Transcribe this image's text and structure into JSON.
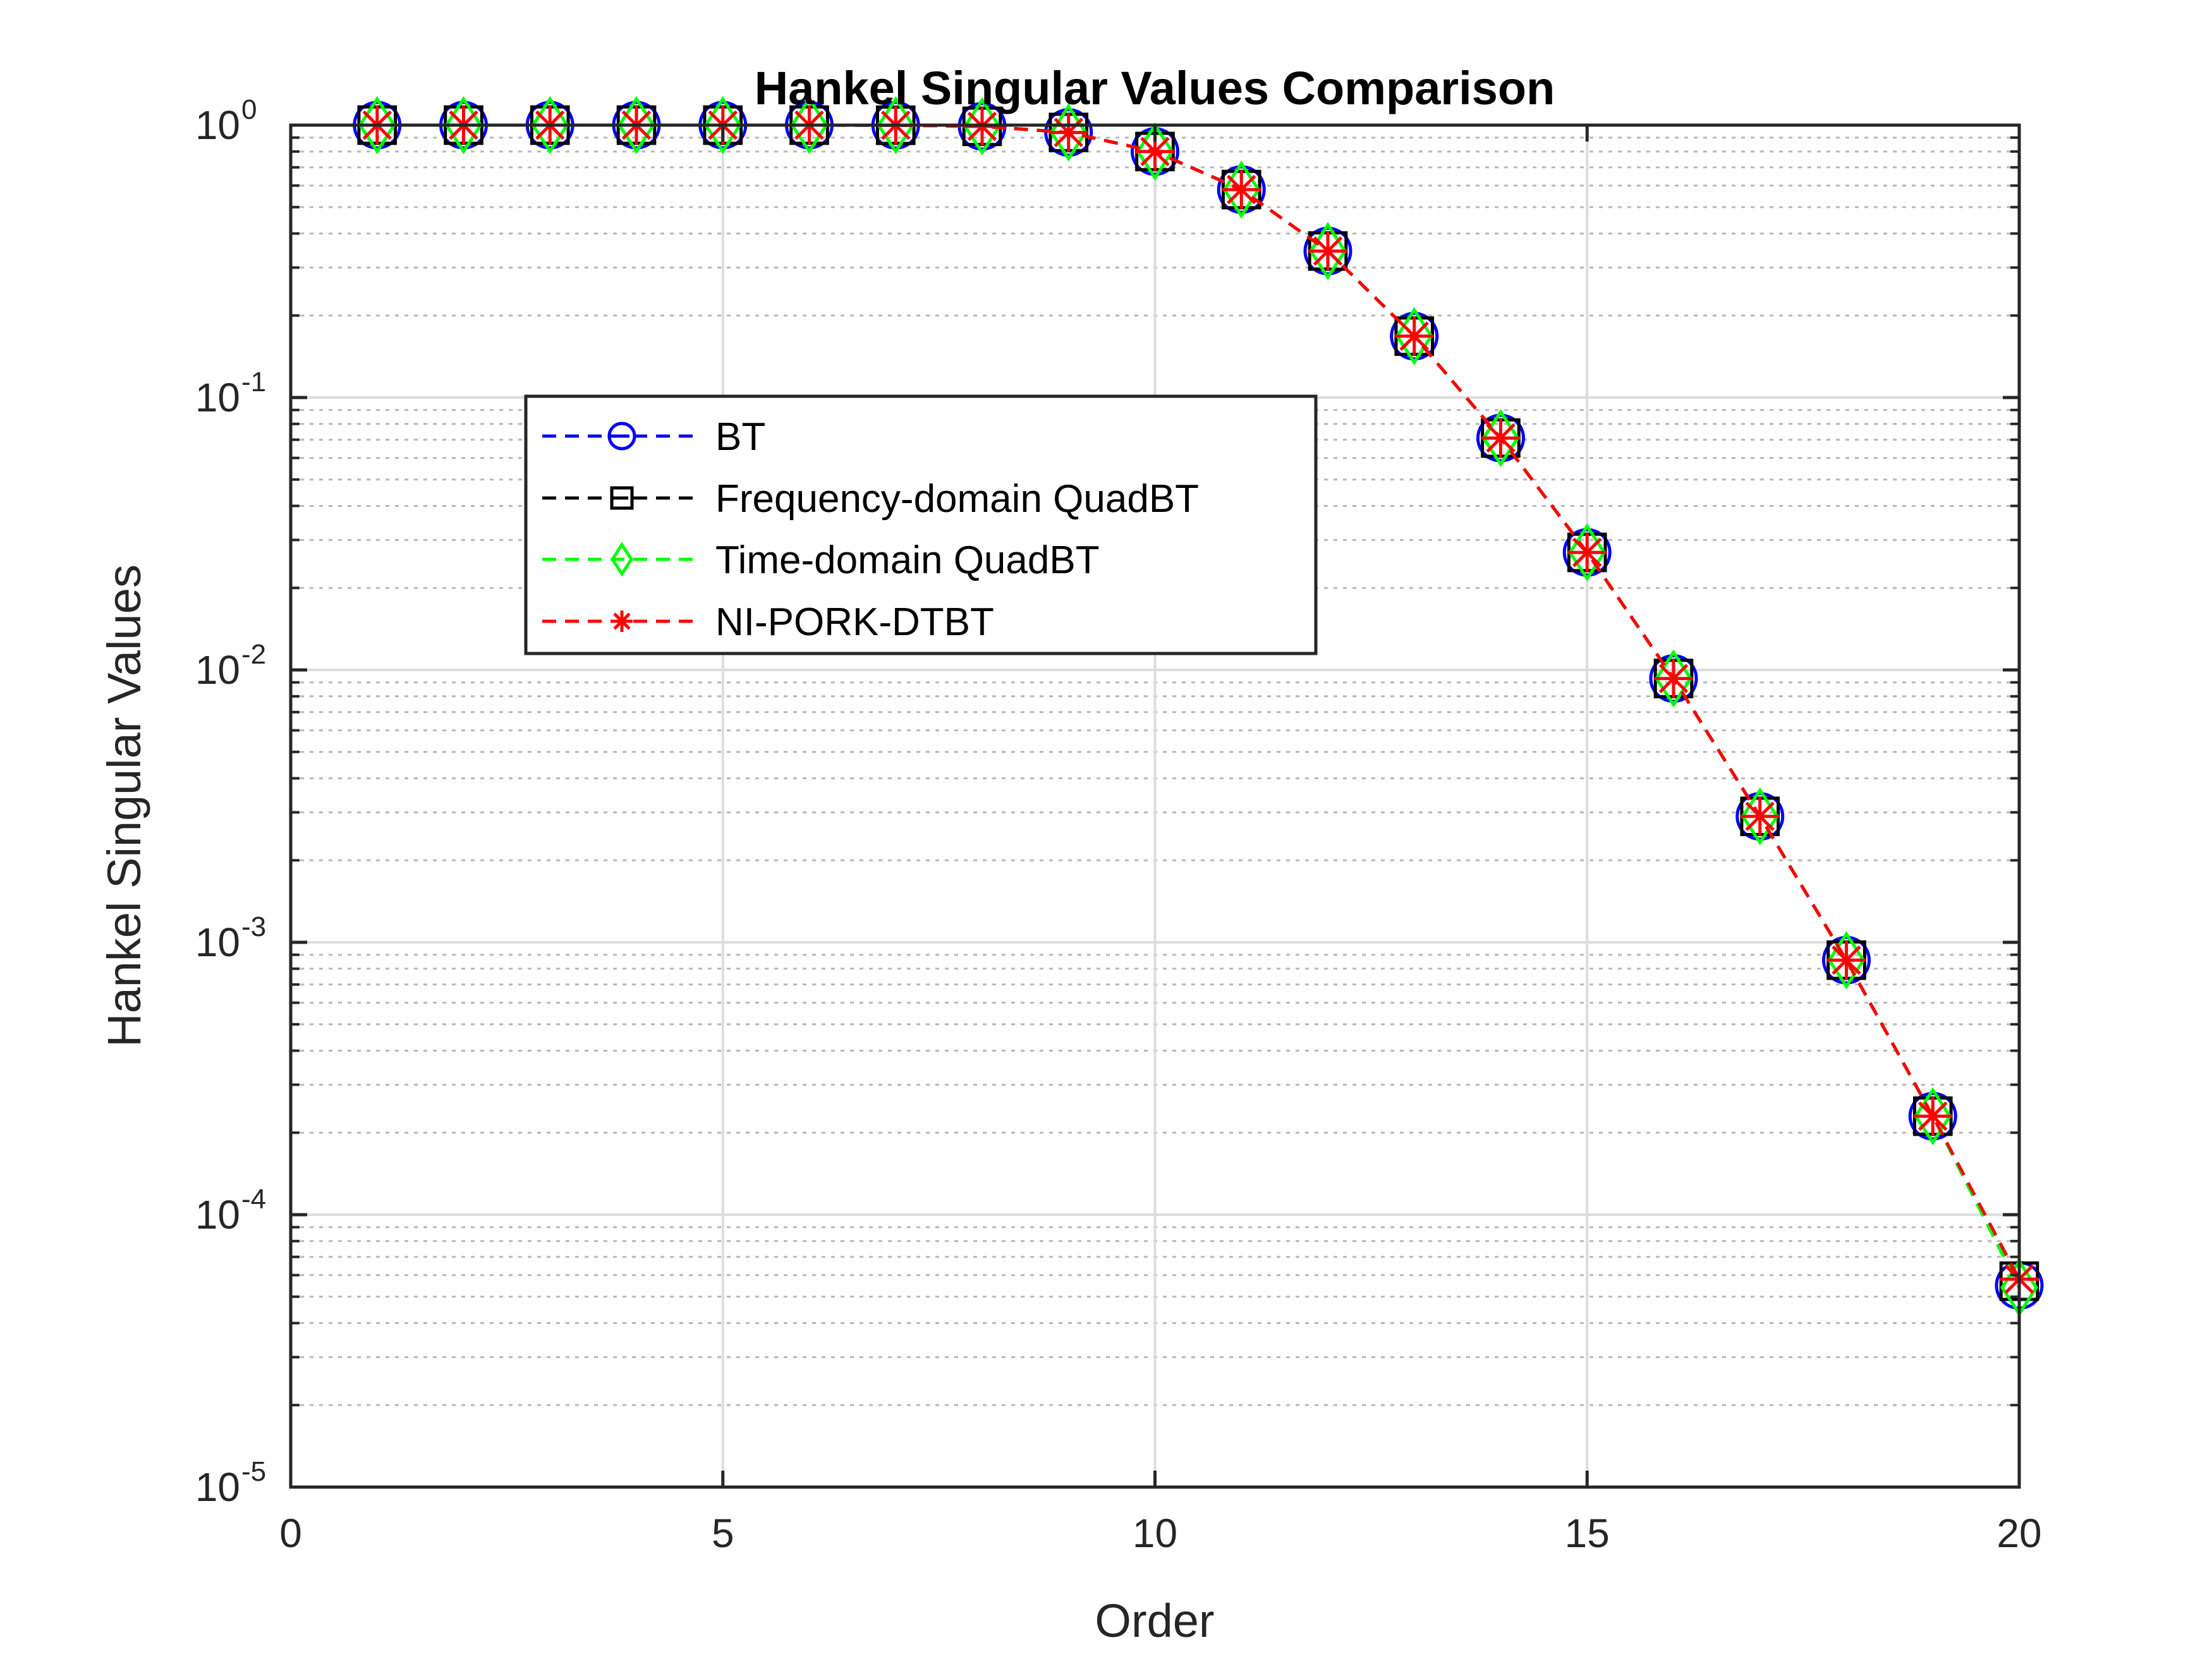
{
  "chart_data": {
    "type": "line",
    "title": "Hankel Singular Values Comparison",
    "xlabel": "Order",
    "ylabel": "Hankel Singular Values",
    "xlim": [
      0,
      20
    ],
    "ylim": [
      1e-05,
      1
    ],
    "yscale": "log",
    "xticks": [
      0,
      5,
      10,
      15,
      20
    ],
    "xtick_labels": [
      "0",
      "5",
      "10",
      "15",
      "20"
    ],
    "yticks": [
      {
        "value": 1,
        "base": "10",
        "exp": "0"
      },
      {
        "value": 0.1,
        "base": "10",
        "exp": "-1"
      },
      {
        "value": 0.01,
        "base": "10",
        "exp": "-2"
      },
      {
        "value": 0.001,
        "base": "10",
        "exp": "-3"
      },
      {
        "value": 0.0001,
        "base": "10",
        "exp": "-4"
      },
      {
        "value": 1e-05,
        "base": "10",
        "exp": "-5"
      }
    ],
    "grid": true,
    "minor_grid": true,
    "legend_position": "upper-left",
    "x": [
      1,
      2,
      3,
      4,
      5,
      6,
      7,
      8,
      9,
      10,
      11,
      12,
      13,
      14,
      15,
      16,
      17,
      18,
      19,
      20
    ],
    "series": [
      {
        "name": "BT",
        "color": "#0000ff",
        "marker": "circle",
        "linestyle": "dashed",
        "values": [
          1.0,
          1.0,
          1.0,
          1.0,
          1.0,
          1.0,
          0.999,
          0.99,
          0.94,
          0.8,
          0.58,
          0.345,
          0.168,
          0.071,
          0.027,
          0.0093,
          0.0029,
          0.00086,
          0.00023,
          5.5e-05
        ]
      },
      {
        "name": "Frequency-domain QuadBT",
        "color": "#000000",
        "marker": "square",
        "linestyle": "dashed",
        "values": [
          1.0,
          1.0,
          1.0,
          1.0,
          1.0,
          1.0,
          0.999,
          0.99,
          0.94,
          0.8,
          0.58,
          0.345,
          0.168,
          0.071,
          0.027,
          0.0093,
          0.0029,
          0.00086,
          0.00023,
          5.7e-05
        ]
      },
      {
        "name": "Time-domain QuadBT",
        "color": "#00ff00",
        "marker": "diamond",
        "linestyle": "dashed",
        "values": [
          1.0,
          1.0,
          1.0,
          1.0,
          1.0,
          1.0,
          0.999,
          0.99,
          0.94,
          0.8,
          0.58,
          0.345,
          0.168,
          0.071,
          0.027,
          0.0093,
          0.0029,
          0.00086,
          0.00023,
          5.4e-05
        ]
      },
      {
        "name": "NI-PORK-DTBT",
        "color": "#ff0000",
        "marker": "asterisk",
        "linestyle": "dashed",
        "values": [
          1.0,
          1.0,
          1.0,
          1.0,
          1.0,
          1.0,
          0.999,
          0.99,
          0.94,
          0.8,
          0.58,
          0.345,
          0.168,
          0.071,
          0.027,
          0.0093,
          0.0029,
          0.00086,
          0.00023,
          5.8e-05
        ]
      }
    ]
  }
}
